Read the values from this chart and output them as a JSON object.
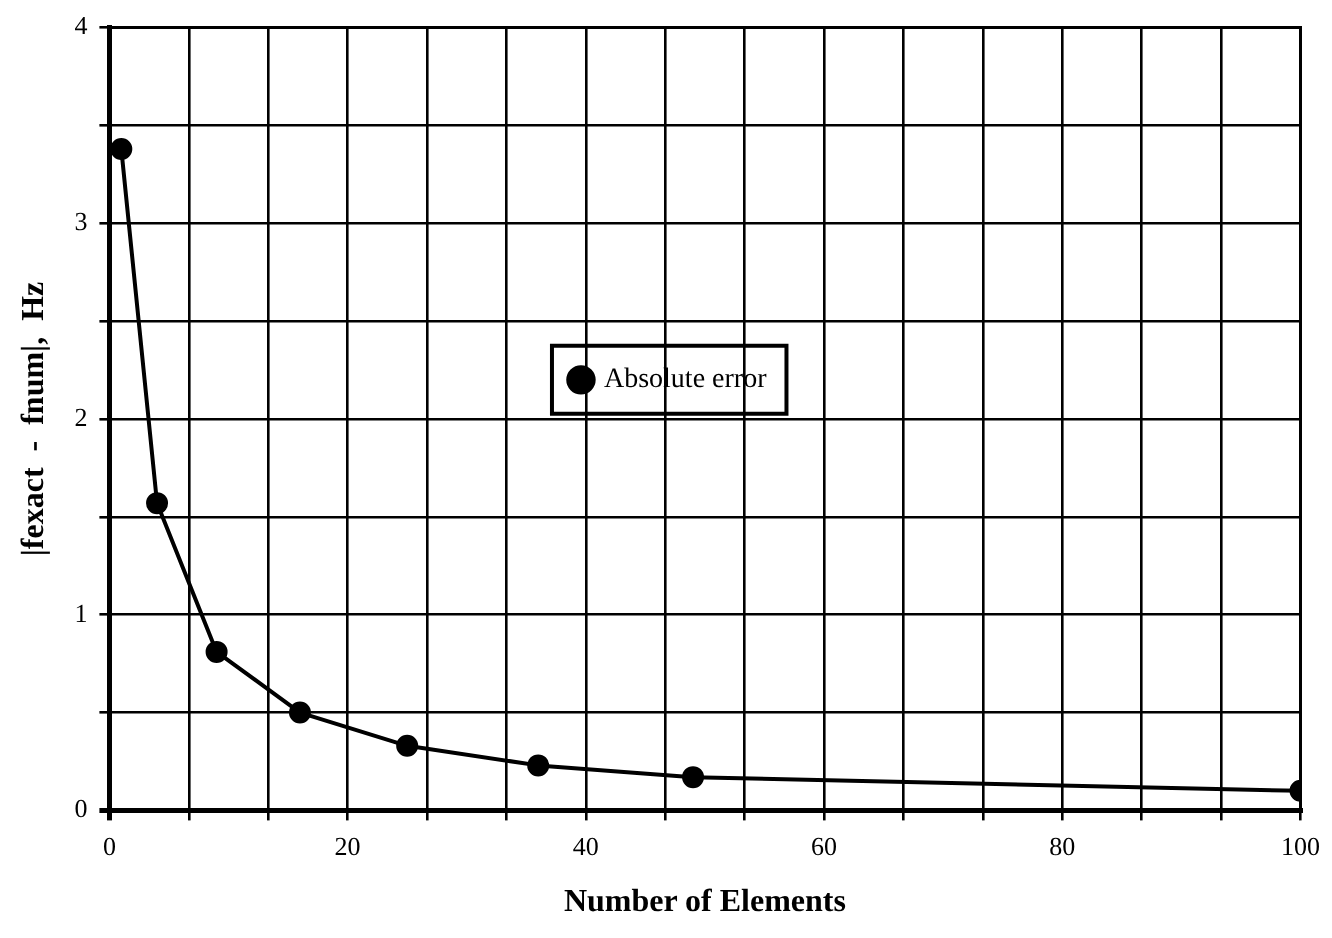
{
  "chart_data": {
    "type": "line",
    "xlabel": "Number of Elements",
    "ylabel": "|fexact  -  fnum|,  Hz",
    "x": [
      1,
      4,
      9,
      16,
      25,
      36,
      49,
      100
    ],
    "series": [
      {
        "name": "Absolute error",
        "color": "#000000",
        "values": [
          3.38,
          1.57,
          0.81,
          0.5,
          0.33,
          0.23,
          0.17,
          0.1
        ]
      }
    ],
    "xlim": [
      0,
      100
    ],
    "xticks": [
      0,
      {
        "value": 6.667,
        "label": null
      },
      {
        "value": 13.333,
        "label": null
      },
      20,
      {
        "value": 26.667,
        "label": null
      },
      {
        "value": 33.333,
        "label": null
      },
      40,
      {
        "value": 46.667,
        "label": null
      },
      {
        "value": 53.333,
        "label": null
      },
      60,
      {
        "value": 66.667,
        "label": null
      },
      {
        "value": 73.333,
        "label": null
      },
      80,
      {
        "value": 86.667,
        "label": null
      },
      {
        "value": 93.333,
        "label": null
      },
      100
    ],
    "ylim": [
      0,
      4
    ],
    "yticks": [
      0,
      {
        "value": 0.5,
        "label": null
      },
      1,
      {
        "value": 1.5,
        "label": null
      },
      2,
      {
        "value": 2.5,
        "label": null
      },
      3,
      {
        "value": 3.5,
        "label": null
      },
      4
    ],
    "grid": true,
    "legend": "center",
    "marker": "circle",
    "line_style": "solid"
  }
}
